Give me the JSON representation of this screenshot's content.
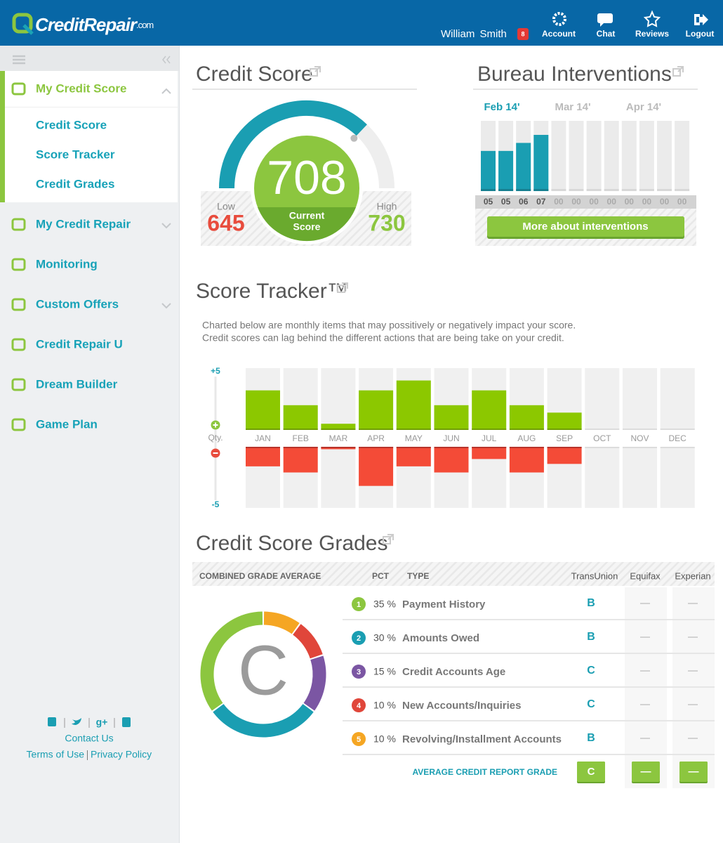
{
  "header": {
    "logo": "CreditRepair",
    "logo_suffix": ".com",
    "user_name": "William Smith",
    "notification_count": 8,
    "nav": [
      "Account",
      "Chat",
      "Reviews",
      "Logout"
    ]
  },
  "sidebar": {
    "items": [
      {
        "label": "My Credit Score",
        "children": [
          "Credit Score",
          "Score Tracker",
          "Credit Grades"
        ]
      },
      {
        "label": "My Credit Repair"
      },
      {
        "label": "Monitoring"
      },
      {
        "label": "Custom Offers"
      },
      {
        "label": "Credit Repair U"
      },
      {
        "label": "Dream Builder"
      },
      {
        "label": "Game Plan"
      }
    ],
    "contact": "Contact Us",
    "terms": "Terms of Use",
    "privacy": "Privacy Policy"
  },
  "credit_score": {
    "title": "Credit Score",
    "low_label": "Low",
    "low": 645,
    "score": 708,
    "score_label": [
      "Current",
      "Score"
    ],
    "high_label": "High",
    "high": 730
  },
  "bureau_interventions": {
    "title": "Bureau Interventions",
    "months": [
      "Feb 14'",
      "Mar 14'",
      "Apr 14'"
    ],
    "counts": [
      5,
      5,
      6,
      7,
      0,
      0,
      0,
      0,
      0,
      0,
      0,
      0
    ],
    "count_labels": [
      "05",
      "05",
      "06",
      "07",
      "00",
      "00",
      "00",
      "00",
      "00",
      "00",
      "00",
      "00"
    ],
    "button": "More about interventions"
  },
  "score_tracker": {
    "title": "Score Tracker™",
    "description": [
      "Charted below are monthly items that may possitively or negatively impact your score.",
      "Credit scores can lag behind the different actions that are being take on your credit."
    ],
    "axis_label": "Qty.",
    "chart": {
      "type": "bar",
      "categories": [
        "JAN",
        "FEB",
        "MAR",
        "APR",
        "MAY",
        "JUN",
        "JUL",
        "AUG",
        "SEP",
        "OCT",
        "NOV",
        "DEC"
      ],
      "positive": [
        3.2,
        2,
        0.5,
        3.2,
        4,
        2,
        3.2,
        2,
        1.4,
        null,
        null,
        null
      ],
      "negative": [
        -1.6,
        -2.1,
        -0.2,
        -3.2,
        -1.6,
        -2.1,
        -1,
        -2.1,
        -1.4,
        null,
        null,
        null
      ],
      "positive_color": "#8cc800",
      "negative_color": "#f44b37",
      "ylim": [
        -5,
        5
      ],
      "yticks": [
        {
          "value": 5,
          "label": "+5"
        },
        -5
      ]
    }
  },
  "grades": {
    "title": "Credit Score Grades",
    "headers": {
      "combined": "COMBINED GRADE AVERAGE",
      "pct": "PCT",
      "type": "TYPE",
      "transunion": "TransUnion",
      "equifax": "Equifax",
      "experian": "Experian"
    },
    "combined_grade": "C",
    "rows": [
      {
        "rank": 1,
        "pct": 35,
        "pct_label": "35 %",
        "type": "Payment History",
        "color": "#8cc63f",
        "transunion": "B",
        "equifax": "—",
        "experian": "—"
      },
      {
        "rank": 2,
        "pct": 30,
        "pct_label": "30 %",
        "type": "Amounts Owed",
        "color": "#1a9eb2",
        "transunion": "B",
        "equifax": "—",
        "experian": "—"
      },
      {
        "rank": 3,
        "pct": 15,
        "pct_label": "15 %",
        "type": "Credit Accounts Age",
        "color": "#7b56a3",
        "transunion": "C",
        "equifax": "—",
        "experian": "—"
      },
      {
        "rank": 4,
        "pct": 10,
        "pct_label": "10 %",
        "type": "New Accounts/Inquiries",
        "color": "#e0463a",
        "transunion": "C",
        "equifax": "—",
        "experian": "—"
      },
      {
        "rank": 5,
        "pct": 10,
        "pct_label": "10 %",
        "type": "Revolving/Installment Accounts",
        "color": "#f5a623",
        "transunion": "B",
        "equifax": "—",
        "experian": "—"
      }
    ],
    "average_label": "AVERAGE CREDIT REPORT GRADE",
    "averages": [
      "C",
      "—",
      "—"
    ]
  }
}
